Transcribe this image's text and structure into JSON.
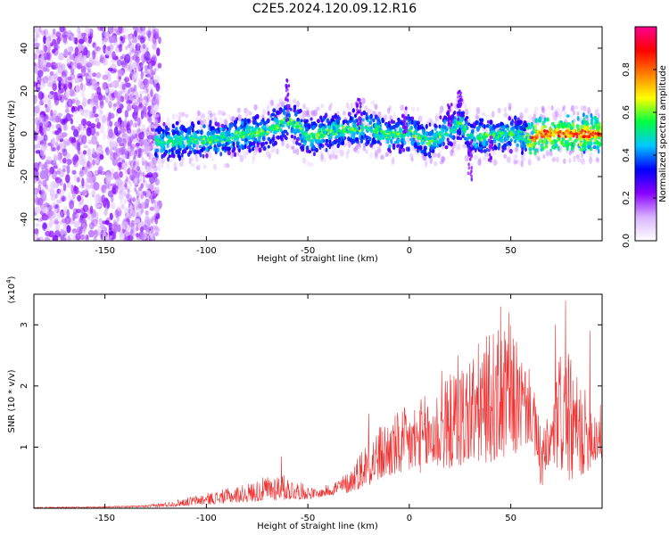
{
  "title": "C2E5.2024.120.09.12.R16",
  "chart_data": [
    {
      "type": "heatmap",
      "xlabel": "Height of straight line (km)",
      "ylabel": "Frequency (Hz)",
      "xlim": [
        -185,
        95
      ],
      "ylim": [
        -50,
        50
      ],
      "xticks": [
        -150,
        -100,
        -50,
        0,
        50
      ],
      "yticks": [
        -40,
        -20,
        0,
        20,
        40
      ],
      "colorbar": {
        "label": "Normalized spectral amplitude",
        "range": [
          0,
          1
        ],
        "ticks": [
          0.0,
          0.2,
          0.4,
          0.6,
          0.8
        ],
        "colors": [
          "#ffffff",
          "#d9b3ff",
          "#8800ff",
          "#0000ff",
          "#00c8ff",
          "#00ff40",
          "#ffff00",
          "#ff8000",
          "#ff0000",
          "#ff0090"
        ]
      },
      "ridge": [
        {
          "x": -120,
          "y": -4
        },
        {
          "x": -110,
          "y": -3
        },
        {
          "x": -100,
          "y": -3
        },
        {
          "x": -90,
          "y": -2
        },
        {
          "x": -80,
          "y": 0
        },
        {
          "x": -70,
          "y": 1
        },
        {
          "x": -60,
          "y": 6
        },
        {
          "x": -55,
          "y": 4
        },
        {
          "x": -50,
          "y": -2
        },
        {
          "x": -40,
          "y": 1
        },
        {
          "x": -30,
          "y": 2
        },
        {
          "x": -20,
          "y": 3
        },
        {
          "x": -10,
          "y": -1
        },
        {
          "x": 0,
          "y": 1
        },
        {
          "x": 10,
          "y": -4
        },
        {
          "x": 20,
          "y": 2
        },
        {
          "x": 25,
          "y": 6
        },
        {
          "x": 30,
          "y": -2
        },
        {
          "x": 40,
          "y": -1
        },
        {
          "x": 50,
          "y": 0
        },
        {
          "x": 55,
          "y": -1
        },
        {
          "x": 60,
          "y": -3
        },
        {
          "x": 65,
          "y": 0
        },
        {
          "x": 70,
          "y": 0
        },
        {
          "x": 80,
          "y": 0
        },
        {
          "x": 90,
          "y": 0
        }
      ]
    },
    {
      "type": "line",
      "xlabel": "Height of straight line (km)",
      "ylabel": "SNR (10 * v/v)",
      "yunit": "(x10^4)",
      "xlim": [
        -185,
        95
      ],
      "ylim": [
        0,
        3.5
      ],
      "xticks": [
        -150,
        -100,
        -50,
        0,
        50
      ],
      "yticks": [
        1,
        2,
        3
      ],
      "color": "#f03030",
      "envelope": [
        {
          "x": -185,
          "y": 0.02
        },
        {
          "x": -150,
          "y": 0.03
        },
        {
          "x": -130,
          "y": 0.05
        },
        {
          "x": -120,
          "y": 0.1
        },
        {
          "x": -100,
          "y": 0.25
        },
        {
          "x": -80,
          "y": 0.4
        },
        {
          "x": -65,
          "y": 0.6
        },
        {
          "x": -55,
          "y": 0.45
        },
        {
          "x": -45,
          "y": 0.3
        },
        {
          "x": -30,
          "y": 0.6
        },
        {
          "x": -20,
          "y": 1.2
        },
        {
          "x": -10,
          "y": 1.5
        },
        {
          "x": 0,
          "y": 1.7
        },
        {
          "x": 10,
          "y": 1.9
        },
        {
          "x": 20,
          "y": 2.2
        },
        {
          "x": 30,
          "y": 2.6
        },
        {
          "x": 40,
          "y": 2.9
        },
        {
          "x": 50,
          "y": 3.0
        },
        {
          "x": 60,
          "y": 2.2
        },
        {
          "x": 65,
          "y": 1.3
        },
        {
          "x": 70,
          "y": 1.6
        },
        {
          "x": 75,
          "y": 2.8
        },
        {
          "x": 80,
          "y": 2.4
        },
        {
          "x": 85,
          "y": 2.0
        },
        {
          "x": 95,
          "y": 1.7
        }
      ],
      "baseline": [
        {
          "x": -185,
          "y": 0.0
        },
        {
          "x": -120,
          "y": 0.02
        },
        {
          "x": -80,
          "y": 0.1
        },
        {
          "x": -50,
          "y": 0.15
        },
        {
          "x": -30,
          "y": 0.25
        },
        {
          "x": -10,
          "y": 0.5
        },
        {
          "x": 10,
          "y": 0.6
        },
        {
          "x": 30,
          "y": 0.7
        },
        {
          "x": 50,
          "y": 0.8
        },
        {
          "x": 60,
          "y": 1.1
        },
        {
          "x": 65,
          "y": 0.3
        },
        {
          "x": 70,
          "y": 0.7
        },
        {
          "x": 80,
          "y": 0.4
        },
        {
          "x": 95,
          "y": 0.8
        }
      ],
      "peaks": [
        {
          "x": 45,
          "y": 3.3
        },
        {
          "x": 49,
          "y": 3.2
        },
        {
          "x": 77,
          "y": 3.4
        },
        {
          "x": 72,
          "y": 3.0
        },
        {
          "x": 89,
          "y": 2.9
        },
        {
          "x": -63,
          "y": 0.85
        },
        {
          "x": -20,
          "y": 1.55
        },
        {
          "x": 16,
          "y": 2.25
        },
        {
          "x": 24,
          "y": 2.5
        }
      ]
    }
  ]
}
